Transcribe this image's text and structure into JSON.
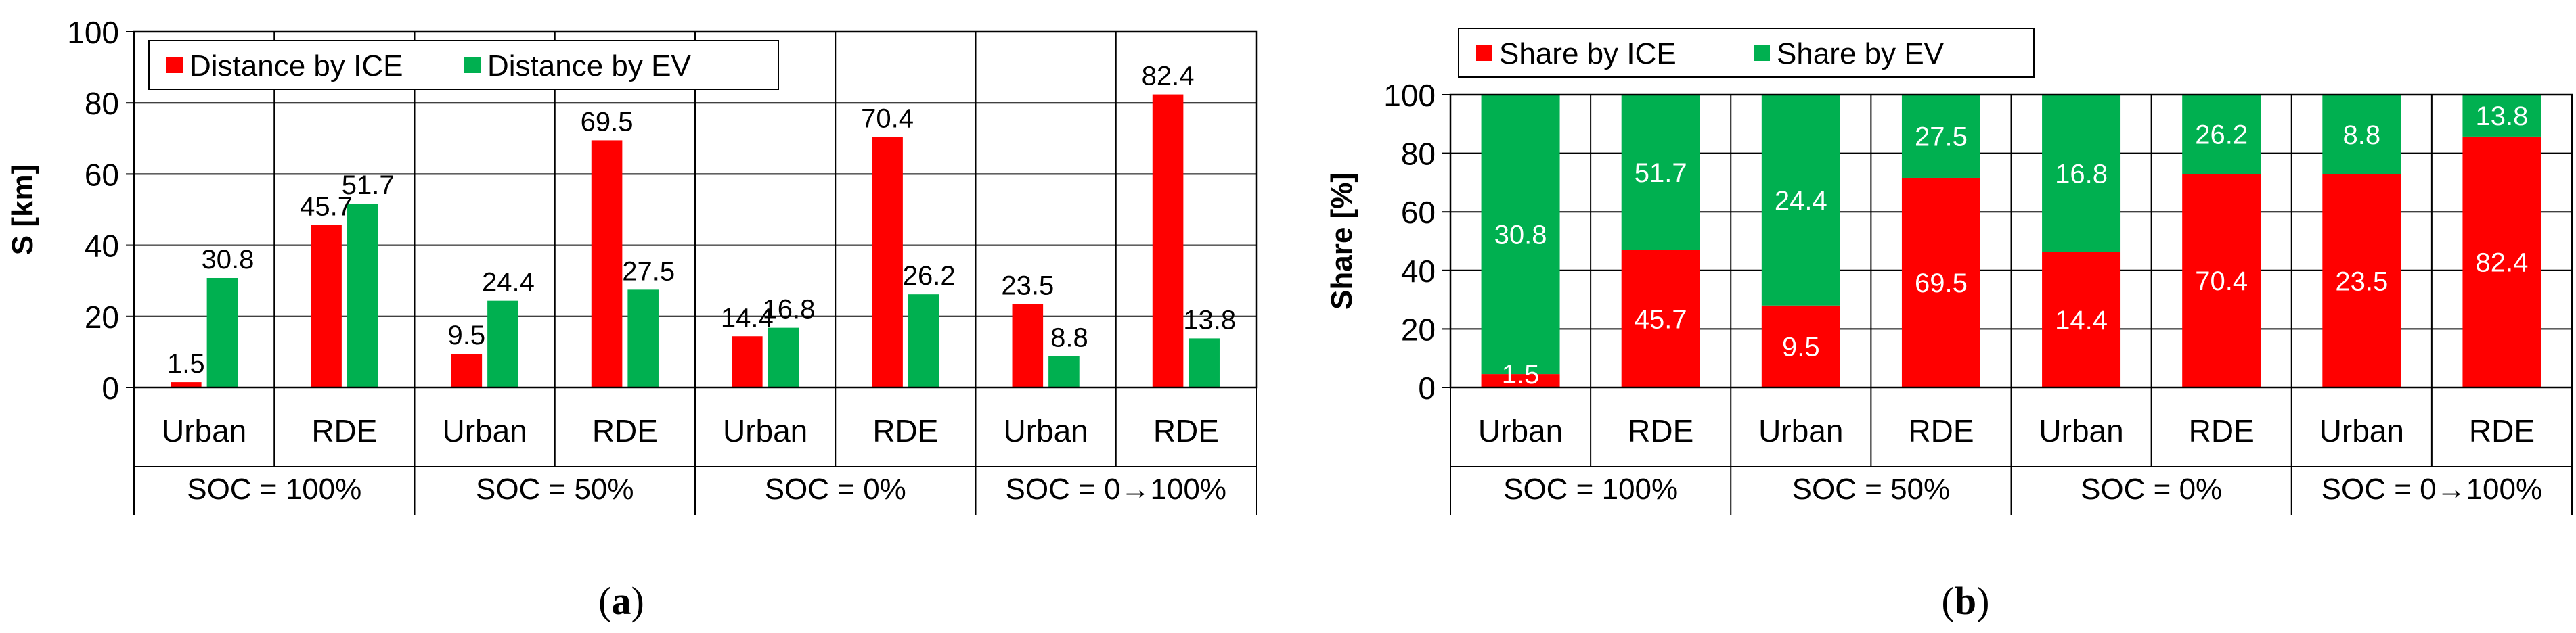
{
  "colors": {
    "ice": "#ff0000",
    "ev": "#00b050",
    "axis": "#000000",
    "grid": "#000000",
    "label_inside": "#ffffff"
  },
  "chart_data": [
    {
      "panel": "a",
      "type": "bar",
      "title": "",
      "xlabel": "",
      "ylabel": "S [km]",
      "ylim": [
        0,
        100
      ],
      "yticks": [
        0,
        20,
        40,
        60,
        80,
        100
      ],
      "grid": true,
      "legend_position": "top-left",
      "categories": [
        "Urban",
        "RDE",
        "Urban",
        "RDE",
        "Urban",
        "RDE",
        "Urban",
        "RDE"
      ],
      "groups": [
        "SOC = 100%",
        "SOC = 50%",
        "SOC = 0%",
        "SOC = 0→100%"
      ],
      "series": [
        {
          "name": "Distance by ICE",
          "key": "ice",
          "values": [
            1.5,
            45.7,
            9.5,
            69.5,
            14.4,
            70.4,
            23.5,
            82.4
          ]
        },
        {
          "name": "Distance by EV",
          "key": "ev",
          "values": [
            30.8,
            51.7,
            24.4,
            27.5,
            16.8,
            26.2,
            8.8,
            13.8
          ]
        }
      ],
      "data_labels": {
        "ice": [
          "1.5",
          "45.7",
          "9.5",
          "69.5",
          "14.4",
          "70.4",
          "23.5",
          "82.4"
        ],
        "ev": [
          "30.8",
          "51.7",
          "24.4",
          "27.5",
          "16.8",
          "26.2",
          "8.8",
          "13.8"
        ]
      }
    },
    {
      "panel": "b",
      "type": "bar",
      "stacked": true,
      "title": "",
      "xlabel": "",
      "ylabel": "Share [%]",
      "ylim": [
        0,
        100
      ],
      "yticks": [
        0,
        20,
        40,
        60,
        80,
        100
      ],
      "grid": true,
      "legend_position": "top-left",
      "categories": [
        "Urban",
        "RDE",
        "Urban",
        "RDE",
        "Urban",
        "RDE",
        "Urban",
        "RDE"
      ],
      "groups": [
        "SOC = 100%",
        "SOC = 50%",
        "SOC = 0%",
        "SOC = 0→100%"
      ],
      "series": [
        {
          "name": "Share by ICE",
          "key": "ice",
          "values": [
            4.6,
            46.9,
            28.0,
            71.6,
            46.2,
            72.9,
            72.8,
            85.7
          ]
        },
        {
          "name": "Share by EV",
          "key": "ev",
          "values": [
            95.4,
            53.1,
            72.0,
            28.4,
            53.8,
            27.1,
            27.2,
            14.3
          ]
        }
      ],
      "data_labels": {
        "ice": [
          "1.5",
          "45.7",
          "9.5",
          "69.5",
          "14.4",
          "70.4",
          "23.5",
          "82.4"
        ],
        "ev": [
          "30.8",
          "51.7",
          "24.4",
          "27.5",
          "16.8",
          "26.2",
          "8.8",
          "13.8"
        ]
      }
    }
  ],
  "panel_labels": [
    {
      "open": "(",
      "letter": "a",
      "close": ")"
    },
    {
      "open": "(",
      "letter": "b",
      "close": ")"
    }
  ]
}
